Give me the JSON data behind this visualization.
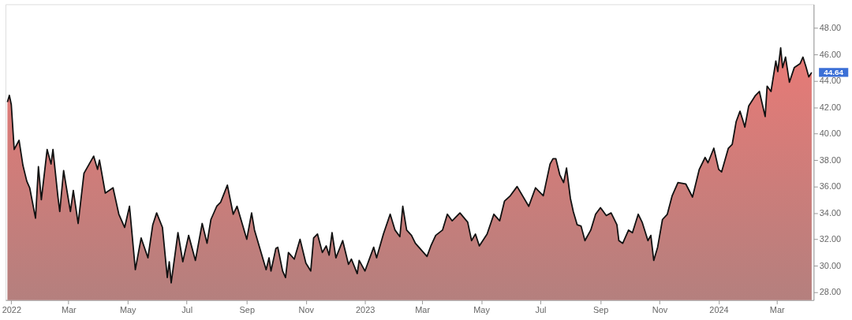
{
  "chart_data": {
    "type": "area",
    "x": [
      "2021-12-28",
      "2021-12-30",
      "2022-01-01",
      "2022-01-04",
      "2022-01-09",
      "2022-01-13",
      "2022-01-17",
      "2022-01-20",
      "2022-01-26",
      "2022-01-29",
      "2022-02-01",
      "2022-02-07",
      "2022-02-11",
      "2022-02-13",
      "2022-02-18",
      "2022-02-20",
      "2022-02-24",
      "2022-03-03",
      "2022-03-06",
      "2022-03-11",
      "2022-03-17",
      "2022-03-27",
      "2022-03-31",
      "2022-04-02",
      "2022-04-08",
      "2022-04-16",
      "2022-04-22",
      "2022-04-28",
      "2022-05-03",
      "2022-05-09",
      "2022-05-15",
      "2022-05-22",
      "2022-05-27",
      "2022-05-31",
      "2022-06-06",
      "2022-06-11",
      "2022-06-13",
      "2022-06-15",
      "2022-06-22",
      "2022-06-27",
      "2022-07-03",
      "2022-07-10",
      "2022-07-17",
      "2022-07-22",
      "2022-07-26",
      "2022-08-01",
      "2022-08-05",
      "2022-08-12",
      "2022-08-18",
      "2022-08-22",
      "2022-09-01",
      "2022-09-06",
      "2022-09-09",
      "2022-09-21",
      "2022-09-24",
      "2022-09-26",
      "2022-10-01",
      "2022-10-03",
      "2022-10-08",
      "2022-10-11",
      "2022-10-14",
      "2022-10-20",
      "2022-10-26",
      "2022-11-01",
      "2022-11-06",
      "2022-11-09",
      "2022-11-13",
      "2022-11-18",
      "2022-11-22",
      "2022-11-25",
      "2022-11-28",
      "2022-12-02",
      "2022-12-09",
      "2022-12-15",
      "2022-12-18",
      "2022-12-24",
      "2022-12-26",
      "2023-01-01",
      "2023-01-10",
      "2023-01-13",
      "2023-01-20",
      "2023-01-27",
      "2023-02-01",
      "2023-02-06",
      "2023-02-09",
      "2023-02-13",
      "2023-02-18",
      "2023-02-22",
      "2023-03-06",
      "2023-03-10",
      "2023-03-15",
      "2023-03-22",
      "2023-03-27",
      "2023-04-01",
      "2023-04-09",
      "2023-04-17",
      "2023-04-21",
      "2023-04-25",
      "2023-04-29",
      "2023-05-07",
      "2023-05-14",
      "2023-05-20",
      "2023-05-25",
      "2023-05-31",
      "2023-06-07",
      "2023-06-19",
      "2023-06-26",
      "2023-07-04",
      "2023-07-11",
      "2023-07-14",
      "2023-07-17",
      "2023-07-21",
      "2023-07-25",
      "2023-07-28",
      "2023-08-01",
      "2023-08-04",
      "2023-08-08",
      "2023-08-12",
      "2023-08-16",
      "2023-08-22",
      "2023-08-27",
      "2023-09-01",
      "2023-09-07",
      "2023-09-12",
      "2023-09-18",
      "2023-09-20",
      "2023-09-24",
      "2023-09-30",
      "2023-10-04",
      "2023-10-10",
      "2023-10-14",
      "2023-10-20",
      "2023-10-23",
      "2023-10-26",
      "2023-10-30",
      "2023-11-04",
      "2023-11-09",
      "2023-11-14",
      "2023-11-20",
      "2023-11-28",
      "2023-12-05",
      "2023-12-12",
      "2023-12-18",
      "2023-12-21",
      "2023-12-27",
      "2024-01-01",
      "2024-01-04",
      "2024-01-11",
      "2024-01-15",
      "2024-01-19",
      "2024-01-23",
      "2024-01-26",
      "2024-01-28",
      "2024-02-01",
      "2024-02-08",
      "2024-02-12",
      "2024-02-18",
      "2024-02-20",
      "2024-02-24",
      "2024-02-29",
      "2024-03-02",
      "2024-03-05",
      "2024-03-07",
      "2024-03-10",
      "2024-03-14",
      "2024-03-19",
      "2024-03-25",
      "2024-03-28",
      "2024-03-31",
      "2024-04-03",
      "2024-04-06"
    ],
    "series": [
      {
        "color": "#111111",
        "values": [
          42.4,
          42.9,
          42.2,
          38.8,
          39.5,
          37.6,
          36.4,
          35.9,
          33.6,
          37.5,
          35.0,
          38.8,
          37.7,
          38.8,
          35.3,
          34.1,
          37.2,
          34.1,
          35.7,
          33.2,
          37.0,
          38.3,
          37.3,
          38.0,
          35.5,
          35.9,
          33.9,
          32.9,
          34.5,
          29.7,
          32.1,
          30.6,
          33.1,
          34.0,
          32.9,
          29.1,
          30.3,
          28.7,
          32.5,
          30.3,
          32.3,
          30.4,
          33.2,
          31.7,
          33.5,
          34.5,
          34.8,
          36.1,
          33.9,
          34.5,
          32.0,
          34.0,
          32.7,
          29.7,
          30.6,
          29.6,
          31.3,
          31.4,
          29.6,
          29.1,
          31.0,
          30.5,
          32.0,
          30.2,
          29.6,
          32.1,
          32.4,
          31.0,
          31.5,
          30.8,
          32.5,
          30.6,
          31.9,
          30.1,
          30.5,
          29.4,
          30.4,
          29.6,
          31.4,
          30.6,
          32.4,
          33.9,
          32.7,
          32.2,
          34.5,
          32.7,
          32.3,
          31.7,
          30.7,
          31.5,
          32.3,
          32.7,
          33.9,
          33.4,
          34.0,
          33.3,
          31.9,
          32.4,
          31.5,
          32.4,
          33.9,
          33.4,
          34.9,
          35.3,
          36.0,
          34.5,
          35.9,
          35.3,
          37.7,
          38.1,
          38.1,
          36.9,
          36.3,
          37.4,
          35.1,
          34.1,
          33.1,
          33.0,
          31.9,
          32.7,
          33.9,
          34.4,
          33.8,
          34.0,
          33.1,
          31.9,
          31.7,
          32.7,
          32.5,
          33.9,
          33.3,
          31.9,
          32.3,
          30.4,
          31.4,
          33.5,
          33.9,
          35.3,
          36.3,
          36.2,
          35.2,
          37.3,
          38.2,
          37.8,
          38.9,
          37.3,
          37.1,
          38.9,
          39.2,
          40.9,
          41.7,
          41.0,
          40.5,
          42.1,
          42.9,
          43.2,
          41.3,
          43.6,
          43.2,
          45.5,
          44.7,
          46.5,
          45.0,
          45.8,
          43.9,
          45.0,
          45.3,
          45.8,
          45.1,
          44.3,
          44.64
        ]
      }
    ],
    "xlim": [
      "2021-12-26",
      "2024-04-08"
    ],
    "xticks": [
      {
        "value": "2022-01-01",
        "label": "2022"
      },
      {
        "value": "2022-03-01",
        "label": "Mar"
      },
      {
        "value": "2022-05-01",
        "label": "May"
      },
      {
        "value": "2022-07-01",
        "label": "Jul"
      },
      {
        "value": "2022-09-01",
        "label": "Sep"
      },
      {
        "value": "2022-11-01",
        "label": "Nov"
      },
      {
        "value": "2023-01-01",
        "label": "2023"
      },
      {
        "value": "2023-03-01",
        "label": "Mar"
      },
      {
        "value": "2023-05-01",
        "label": "May"
      },
      {
        "value": "2023-07-01",
        "label": "Jul"
      },
      {
        "value": "2023-09-01",
        "label": "Sep"
      },
      {
        "value": "2023-11-01",
        "label": "Nov"
      },
      {
        "value": "2024-01-01",
        "label": "2024"
      },
      {
        "value": "2024-03-01",
        "label": "Mar"
      }
    ],
    "ylim": [
      27.4,
      49.8
    ],
    "yticks": [
      {
        "value": 28,
        "label": "28.00"
      },
      {
        "value": 30,
        "label": "30.00"
      },
      {
        "value": 32,
        "label": "32.00"
      },
      {
        "value": 34,
        "label": "34.00"
      },
      {
        "value": 36,
        "label": "36.00"
      },
      {
        "value": 38,
        "label": "38.00"
      },
      {
        "value": 40,
        "label": "40.00"
      },
      {
        "value": 42,
        "label": "42.00"
      },
      {
        "value": 44,
        "label": "44.00"
      },
      {
        "value": 46,
        "label": "46.00"
      },
      {
        "value": 48,
        "label": "48.00"
      }
    ],
    "annotations": [
      {
        "text": "44.64",
        "x": "2024-04-06",
        "y": 44.64
      }
    ],
    "grid": false
  }
}
